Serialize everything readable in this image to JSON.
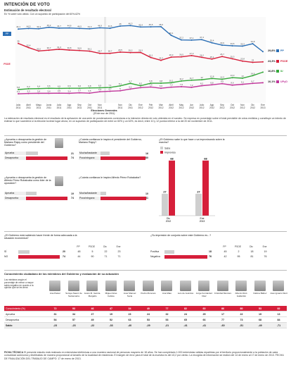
{
  "header": {
    "title": "INTENCIÓN DE VOTO",
    "subtitle": "Estimación de resultado electoral",
    "note": "En % sobre voto válido. Con un supuesto de participación del 60%-62%"
  },
  "chart_data": {
    "type": "line",
    "title": "Estimación de resultado electoral",
    "x": [
      "Julio 2011",
      "Abril 2011",
      "Mayo 2011",
      "Junio 2011",
      "Julio 2011",
      "Ago 2011",
      "Sep 2011",
      "Oct 2011",
      "Nov 2011",
      "Elecciones Generales",
      "Nov 2011",
      "Dic 2011",
      "Ene 2012",
      "Feb 2012",
      "Mar 2012",
      "Abril 2012",
      "May 2012",
      "Jun 2012",
      "Julio 2012",
      "Ago 2012",
      "Sep 2012",
      "Oct 2012",
      "Nov 2012",
      "Dic 2012",
      "Ene 2013"
    ],
    "xlabel": "Elecciones Generales (20 de nov. de 2011)",
    "series": [
      {
        "name": "PP",
        "color": "#2c6fb5",
        "values": [
          44.1,
          44.5,
          44.3,
          45.2,
          44.7,
          44.8,
          44.5,
          44.3,
          44.9,
          44.6,
          46.0,
          46.3,
          45.4,
          45.5,
          45.6,
          40.1,
          37.2,
          37.1,
          37.4,
          35.4,
          33.9,
          33.5,
          33.3,
          34.8,
          29.8
        ]
      },
      {
        "name": "PSOE",
        "color": "#d61f3a",
        "values": [
          35.0,
          32.4,
          30.2,
          30.7,
          31.3,
          30.8,
          30.5,
          30.1,
          28.7,
          28.7,
          29.5,
          29.2,
          29.3,
          26.1,
          24.3,
          26.3,
          26.5,
          27.3,
          26.2,
          25.1,
          26.7,
          25.3,
          23.8,
          23.0,
          23.3
        ]
      },
      {
        "name": "IU",
        "color": "#35a83a",
        "values": [
          5.8,
          6.3,
          6.4,
          6.6,
          6.5,
          6.6,
          6.6,
          6.8,
          6.9,
          7.1,
          8.1,
          9.7,
          8.2,
          9.8,
          9.8,
          10.1,
          11.2,
          11.7,
          12.0,
          12.8,
          12.3,
          13.3,
          13.0,
          14.6,
          16.8
        ]
      },
      {
        "name": "UPyD",
        "color": "#c0369a",
        "values": [
          3.1,
          3.3,
          3.4,
          3.4,
          3.5,
          3.4,
          3.7,
          3.5,
          4.4,
          4.7,
          5.0,
          6.1,
          7.0,
          7.4,
          6.6,
          7.3,
          7.6,
          7.2,
          8.2,
          8.8,
          9.5,
          8.6,
          9.1,
          9.7,
          10.1
        ]
      }
    ],
    "end_labels": [
      {
        "series": "PP",
        "text": "29,8%"
      },
      {
        "series": "PSOE",
        "text": "23,3%"
      },
      {
        "series": "IU",
        "text": "16,8%"
      },
      {
        "series": "UPyD",
        "text": "10,1%"
      }
    ],
    "ylim": [
      0,
      50
    ]
  },
  "x_labels_top": [
    "Julio",
    "Abril",
    "Mayo",
    "Junio",
    "Julio",
    "Ago",
    "Sep",
    "Oct",
    "Nov",
    "",
    "Nov",
    "Dic",
    "Ene",
    "Feb",
    "Mar",
    "Abril",
    "May",
    "Jun",
    "Julio",
    "Ago",
    "Sep",
    "Oct",
    "Nov",
    "Dic",
    "Ene"
  ],
  "x_labels_year": [
    "2011",
    "2011",
    "2011",
    "2011",
    "2011",
    "2011",
    "2011",
    "2011",
    "2011",
    "",
    "2011",
    "2011",
    "2012",
    "2012",
    "2012",
    "2012",
    "2012",
    "2012",
    "2012",
    "2012",
    "2012",
    "2012",
    "2012",
    "2012",
    "2013"
  ],
  "election_label": "Elecciones Generales",
  "election_date": "(20 de nov. de 2011)",
  "legend": {
    "pp": "PP",
    "psoe": "PSOE",
    "iu": "IU",
    "upyd": "UPyD"
  },
  "paragraph": "La estimación de resultado electoral es el resultado de la aplicación de una serie de ponderaciones correctoras a la intención directa de voto obtenida en el sondeo. Se expresa en porcentaje sobre el total previsible de votos emitidos y constituye un intento de estimar lo que sucedería si la elección tuviese lugar ahora, en un supuesto de participación de entre un 60% y un 62%, es decir, entre 10 y 12 puntos inferior a la del 20 de noviembre de 2011.",
  "blocks": {
    "rajoy": {
      "question": "¿Aprueba o desaprueba la gestión de Mariano Rajoy como presidente del Gobierno?",
      "rows": [
        {
          "label": "Aprueba",
          "value": "21"
        },
        {
          "label": "Desaprueba",
          "value": "74"
        }
      ],
      "values": [
        21,
        74
      ]
    },
    "confianza_rajoy": {
      "question": "¿Cuánta confianza le inspira el presidente del Gobierno, Mariano Rajoy?",
      "rows": [
        {
          "label": "Mucha/bastante",
          "value": "16"
        },
        {
          "label": "Poca/ninguna",
          "value": "80"
        }
      ],
      "values": [
        16,
        80
      ]
    },
    "rubalcaba": {
      "question": "¿Aprueba o desaprueba la gestión de Alfredo Pérez Rubalcaba como líder de la oposición?",
      "rows": [
        {
          "label": "Aprueba",
          "value": "19"
        },
        {
          "label": "Desaprueba",
          "value": "74"
        }
      ],
      "values": [
        19,
        74
      ]
    },
    "confianza_rubalcaba": {
      "question": "¿Cuánta confianza le inspira Alfredo Pérez Rubalcaba?",
      "rows": [
        {
          "label": "Mucha/bastante",
          "value": "10"
        },
        {
          "label": "Poca/ninguna",
          "value": "81"
        }
      ],
      "values": [
        10,
        81
      ]
    },
    "improvisando": {
      "question": "¿El Gobierno sabe lo que hace o va improvisando sobre la marcha?",
      "legend": [
        "Sabe",
        "Improvisa"
      ],
      "categories": [
        "Dic 2012",
        "Ene 2013"
      ],
      "sabe": [
        27,
        27
      ],
      "improvisa": [
        68,
        68
      ],
      "sabe_labels": [
        "27",
        "27"
      ],
      "improvisa_labels": [
        "68",
        "68"
      ],
      "footer": "Dic     Ene"
    },
    "economica": {
      "question": "¿El Gobierno está sabiendo hacer frente de forma adecuada a la situación económica?",
      "cols": [
        "PP",
        "PSOE",
        "Dic",
        "Ene"
      ],
      "rows": [
        {
          "label": "SÍ",
          "value": "20",
          "pp": "48",
          "psoe": "5",
          "dic": "22",
          "ene": "23"
        },
        {
          "label": "NO",
          "value": "74",
          "pp": "44",
          "psoe": "90",
          "dic": "71",
          "ene": "71"
        }
      ],
      "values": [
        20,
        74
      ]
    },
    "impresion": {
      "question": "¿Su impresión de conjunto sobre este Gobierno es...?",
      "cols": [
        "PP",
        "PSOE",
        "Dic",
        "Ene"
      ],
      "label_month": "Diciembre",
      "rows": [
        {
          "label": "Positiva",
          "value": "18",
          "pp": "45",
          "psoe": "2",
          "dic": "18",
          "ene": "19"
        },
        {
          "label": "Negativa",
          "value": "76",
          "pp": "42",
          "psoe": "95",
          "dic": "81",
          "ene": "76"
        }
      ],
      "values": [
        18,
        76
      ]
    }
  },
  "ministers": {
    "title": "Conocimiento ciudadano de los miembros del Gobierno y evaluación de su actuación",
    "intro": "Los ministros según el porcentaje de menor a mayor saldo negativo en cuanto a la opinión que se les tiene.",
    "names": [
      "Ana Pastor",
      "Soraya Sáenz de Santamaría",
      "Jesús M. García-Margallo",
      "Miguel Arias Cañete",
      "José Manuel Soria",
      "Pedro Morenés",
      "Ana Mato",
      "Luis de Guindos",
      "Jorge Fernández Díaz",
      "Cristóbal Montoro",
      "Alberto Ruiz-Gallardón",
      "Fátima Báñez",
      "José Ignacio Wert"
    ],
    "rows": [
      {
        "label": "Conocimiento (%)",
        "values": [
          "72",
          "93",
          "46",
          "47",
          "34",
          "40",
          "77",
          "82",
          "60",
          "86",
          "80",
          "53",
          "82"
        ]
      },
      {
        "label": "Aprueba",
        "values": [
          "31",
          "34",
          "27",
          "19",
          "23",
          "24",
          "32",
          "24",
          "25",
          "17",
          "22",
          "19",
          "13"
        ]
      },
      {
        "label": "Desaprueba",
        "values": [
          "54",
          "57",
          "49",
          "52",
          "63",
          "53",
          "53",
          "65",
          "66",
          "77",
          "73",
          "68",
          "84"
        ]
      },
      {
        "label": "Saldo",
        "values": [
          "-23",
          "-23",
          "-22",
          "-33",
          "-40",
          "-29",
          "-21",
          "-41",
          "-41",
          "-60",
          "-51",
          "-49",
          "-71"
        ]
      }
    ]
  },
  "footer": {
    "title": "FICHA TÉCNICA",
    "text": "El presente estudio está realizado en entrevistas telefónicas a una muestra nacional de personas mayores de 18 años. Se han completado 1.000 entrevistas válidas repartidas por el territorio proporcionalmente a la población de cada comunidad autónoma y distribuidas de manera proporcional al tamaño de la localidad de residencia. El margen de error para el total de la muestra es del ±3,2 por ciento. La recogida de información se realizó del 14 de enero al 17 de enero de 2013. FECHA DE FINALIZACIÓN DEL TRABAJO DE CAMPO: 17 de enero de 2013."
  },
  "colors": {
    "red": "#d61f3a",
    "pp": "#2c6fb5",
    "psoe": "#d61f3a",
    "iu": "#35a83a",
    "upyd": "#c0369a",
    "gray": "#cfcfcf",
    "tan": "#efe7dc"
  }
}
